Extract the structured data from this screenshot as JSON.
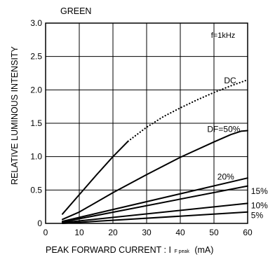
{
  "chart_data": {
    "type": "line",
    "title": "GREEN",
    "subtitle": "f=1kHz",
    "xlabel_main": "PEAK  FORWARD  CURRENT : I",
    "xlabel_sub": "F  peak",
    "xlabel_unit": "(mA)",
    "ylabel": "RELATIVE  LUMINOUS  INTENSITY",
    "xlim": [
      0,
      60
    ],
    "ylim": [
      0,
      3.0
    ],
    "xticks": [
      0,
      10,
      20,
      30,
      40,
      50,
      60
    ],
    "yticks": [
      0,
      0.5,
      1.0,
      1.5,
      2.0,
      2.5,
      3.0
    ],
    "xtick_labels": [
      "0",
      "10",
      "20",
      "30",
      "40",
      "50",
      "60"
    ],
    "ytick_labels": [
      "0",
      "0.5",
      "1.0",
      "1.5",
      "2.0",
      "2.5",
      "3.0"
    ],
    "grid": true,
    "series": [
      {
        "name": "DC",
        "style": "solid",
        "x": [
          5,
          10,
          15,
          20,
          24.5
        ],
        "y": [
          0.14,
          0.43,
          0.72,
          1.0,
          1.23
        ]
      },
      {
        "name": "DC",
        "style": "dotted",
        "x": [
          24.5,
          30,
          35,
          40,
          45,
          50,
          55,
          60
        ],
        "y": [
          1.23,
          1.44,
          1.6,
          1.73,
          1.85,
          1.96,
          2.06,
          2.15
        ]
      },
      {
        "name": "DF=50%",
        "style": "solid",
        "x": [
          5,
          10,
          20,
          30,
          40,
          50,
          55,
          58,
          60
        ],
        "y": [
          0.06,
          0.17,
          0.46,
          0.73,
          0.99,
          1.22,
          1.33,
          1.38,
          1.39
        ]
      },
      {
        "name": "20%",
        "style": "solid",
        "x": [
          5,
          60
        ],
        "y": [
          0.03,
          0.68
        ]
      },
      {
        "name": "15%",
        "style": "solid",
        "x": [
          5,
          60
        ],
        "y": [
          0.02,
          0.56
        ]
      },
      {
        "name": "10%",
        "style": "solid",
        "x": [
          5,
          60
        ],
        "y": [
          0.01,
          0.3
        ]
      },
      {
        "name": "5%",
        "style": "solid",
        "x": [
          5,
          60
        ],
        "y": [
          0.0,
          0.17
        ]
      }
    ],
    "annotations": [
      {
        "text": "DC",
        "x": 53,
        "y": 2.14
      },
      {
        "text": "DF=50%",
        "x": 48,
        "y": 1.41
      },
      {
        "text": "20%",
        "x": 51,
        "y": 0.7
      },
      {
        "text": "15%",
        "x": 61,
        "y": 0.48
      },
      {
        "text": "10%",
        "x": 61,
        "y": 0.27
      },
      {
        "text": "5%",
        "x": 61,
        "y": 0.12
      }
    ]
  }
}
